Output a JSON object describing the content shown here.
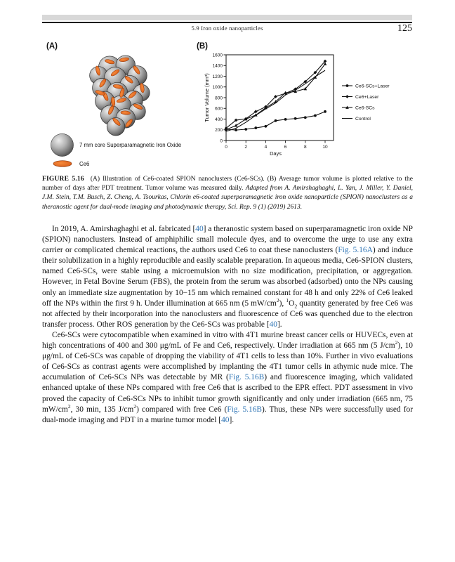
{
  "theme": {
    "link_color": "#2e74b5",
    "accent_orange": "#e0661f",
    "sphere_gray": "#9a9a9a"
  },
  "header": {
    "section": "5.9  Iron oxide nanoparticles",
    "page_number": "125"
  },
  "figure": {
    "panel_a_label": "(A)",
    "panel_b_label": "(B)",
    "legend_a": [
      {
        "icon": "iron-oxide-sphere-icon",
        "label": "7 mm core Superparamagnetic Iron Oxide"
      },
      {
        "icon": "ce6-ellipse-icon",
        "label": "Ce6"
      }
    ]
  },
  "chart_data": {
    "type": "line",
    "title": "",
    "xlabel": "Days",
    "ylabel": "Tumor Volume (mm³)",
    "xlim": [
      0,
      11
    ],
    "ylim": [
      0,
      1600
    ],
    "xticks": [
      0,
      2,
      4,
      6,
      8,
      10
    ],
    "yticks": [
      0,
      200,
      400,
      600,
      800,
      1000,
      1200,
      1400,
      1600
    ],
    "grid": false,
    "legend_position": "right",
    "x": [
      0,
      1,
      2,
      3,
      4,
      5,
      6,
      7,
      8,
      9,
      10
    ],
    "series": [
      {
        "name": "Ce6-SCs+Laser",
        "marker": "circle",
        "values": [
          210,
          195,
          210,
          235,
          265,
          370,
          395,
          410,
          430,
          465,
          540
        ]
      },
      {
        "name": "Ce6+Laser",
        "marker": "diamond",
        "values": [
          230,
          380,
          405,
          540,
          630,
          820,
          880,
          960,
          1100,
          1270,
          1480
        ]
      },
      {
        "name": "Ce6-SCs",
        "marker": "triangle",
        "values": [
          200,
          280,
          400,
          475,
          610,
          725,
          890,
          915,
          965,
          1180,
          1430
        ]
      },
      {
        "name": "Control",
        "marker": "none",
        "values": [
          170,
          230,
          340,
          470,
          590,
          700,
          850,
          940,
          1060,
          1190,
          1310
        ]
      }
    ]
  },
  "caption": {
    "runs": [
      {
        "s": "b",
        "t": "FIGURE 5.16"
      },
      {
        "s": "n",
        "t": " (A) Illustration of Ce6-coated SPION nanoclusters (Ce6-SCs). (B) Average tumor volume is plotted relative to the number of days after PDT treatment. Tumor volume was measured daily. "
      },
      {
        "s": "i",
        "t": "Adapted from A. Amirshaghaghi, L. Yan, J. Miller, Y. Daniel, J.M. Stein, T.M. Busch, Z. Cheng, A. Tsourkas, Chlorin e6-coated superparamagnetic iron oxide nanoparticle (SPION) nanoclusters as a theranostic agent for dual-mode imaging and photodynamic therapy, Sci. Rep. 9 (1) (2019) 2613."
      }
    ]
  },
  "paragraphs": [
    {
      "runs": [
        {
          "s": "n",
          "t": "In 2019, A. Amirshaghaghi et al. fabricated ["
        },
        {
          "s": "link",
          "t": "40"
        },
        {
          "s": "n",
          "t": "] a theranostic system based on superparamagnetic iron oxide NP (SPION) nanoclusters. Instead of amphiphilic small molecule dyes, and to overcome the urge to use any extra carrier or complicated chemical reactions, the authors used Ce6 to coat these nanoclusters ("
        },
        {
          "s": "link",
          "t": "Fig. 5.16A"
        },
        {
          "s": "n",
          "t": ") and induce their solubilization in a highly reproducible and easily scalable preparation. In aqueous media, Ce6-SPION clusters, named Ce6-SCs, were stable using a microemulsion with no size modification, precipitation, or aggregation. However, in Fetal Bovine Serum (FBS), the protein from the serum was absorbed (adsorbed) onto the NPs causing only an immediate size augmentation by 10−15 nm which remained constant for 48 h and only 22% of Ce6 leaked off the NPs within the first 9 h. Under illumination at 665 nm (5 mW/cm"
        },
        {
          "s": "sup",
          "t": "2"
        },
        {
          "s": "n",
          "t": "), "
        },
        {
          "s": "sup",
          "t": "1"
        },
        {
          "s": "n",
          "t": "O"
        },
        {
          "s": "sub",
          "t": "2"
        },
        {
          "s": "n",
          "t": " quantity generated by free Ce6 was not affected by their incorporation into the nanoclusters and fluorescence of Ce6 was quenched due to the electron transfer process. Other ROS generation by the Ce6-SCs was probable ["
        },
        {
          "s": "link",
          "t": "40"
        },
        {
          "s": "n",
          "t": "]."
        }
      ]
    },
    {
      "runs": [
        {
          "s": "n",
          "t": "Ce6-SCs were cytocompatible when examined in vitro with 4T1 murine breast cancer cells or HUVECs, even at high concentrations of 400 and 300 μg/mL of Fe and Ce6, respectively. Under irradiation at 665 nm (5 J/cm"
        },
        {
          "s": "sup",
          "t": "2"
        },
        {
          "s": "n",
          "t": "), 10 μg/mL of Ce6-SCs was capable of dropping the viability of 4T1 cells to less than 10%. Further in vivo evaluations of Ce6-SCs as contrast agents were accomplished by implanting the 4T1 tumor cells in athymic nude mice. The accumulation of Ce6-SCs NPs was detectable by MR ("
        },
        {
          "s": "link",
          "t": "Fig. 5.16B"
        },
        {
          "s": "n",
          "t": ") and fluorescence imaging, which validated enhanced uptake of these NPs compared with free Ce6 that is ascribed to the EPR effect. PDT assessment in vivo proved the capacity of Ce6-SCs NPs to inhibit tumor growth significantly and only under irradiation (665 nm, 75 mW/cm"
        },
        {
          "s": "sup",
          "t": "2"
        },
        {
          "s": "n",
          "t": ", 30 min, 135 J/cm"
        },
        {
          "s": "sup",
          "t": "2"
        },
        {
          "s": "n",
          "t": ") compared with free Ce6 ("
        },
        {
          "s": "link",
          "t": "Fig. 5.16B"
        },
        {
          "s": "n",
          "t": "). Thus, these NPs were successfully used for dual-mode imaging and PDT in a murine tumor model ["
        },
        {
          "s": "link",
          "t": "40"
        },
        {
          "s": "n",
          "t": "]."
        }
      ]
    }
  ]
}
